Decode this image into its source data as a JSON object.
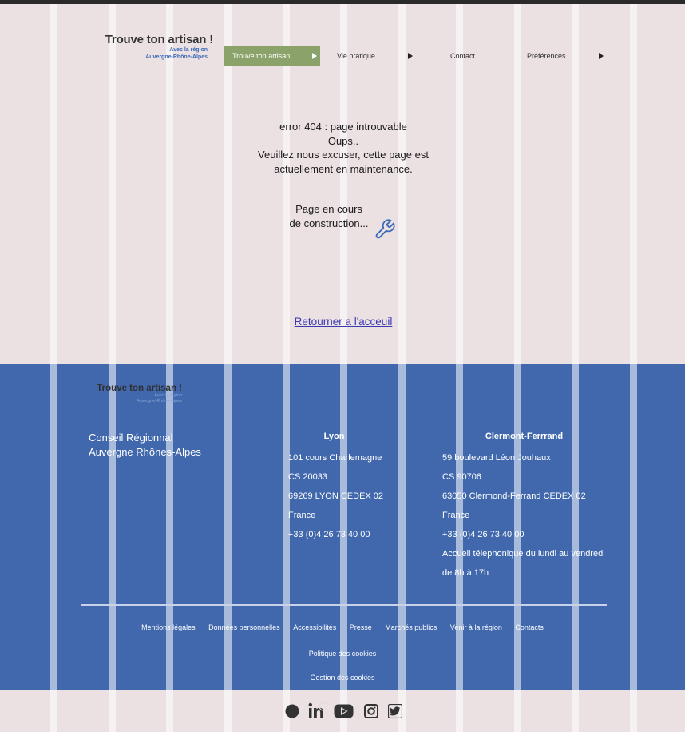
{
  "header": {
    "logo_title": "Trouve ton artisan !",
    "logo_sub1": "Avec la région",
    "logo_sub2": "Auvergne-Rhône-Alpes",
    "nav": [
      {
        "label": "Trouve ton artisan",
        "active": true
      },
      {
        "label": "Vie pratique"
      },
      {
        "label": "Contact"
      },
      {
        "label": "Préférences"
      }
    ]
  },
  "main": {
    "error_line1": "error 404 : page introuvable",
    "error_line2": "Oups..",
    "error_line3": "Veuillez nous excuser, cette page est actuellement en maintenance.",
    "construction": "Page en cours de construction...",
    "home_link": "Retourner a l'acceuil"
  },
  "footer": {
    "logo_title": "Trouve ton artisan !",
    "logo_sub1": "Avec la région",
    "logo_sub2": "Auvergne-Rhône-Alpes",
    "council_line1": "Conseil Régionnal",
    "council_line2": "Auvergne Rhônes-Alpes",
    "lyon": {
      "name": "Lyon",
      "lines": [
        "101 cours Charlemagne",
        "CS 20033",
        "69269 LYON CEDEX 02",
        "France",
        "+33 (0)4 26 73 40 00"
      ]
    },
    "clermont": {
      "name": "Clermont-Ferrrand",
      "lines": [
        "59 boulevard Léon Jouhaux",
        "CS 90706",
        "63050 Clermond-Ferrand CEDEX 02",
        "France",
        "+33 (0)4 26 73 40 00",
        "Accueil télephonique du lundi au vendredi",
        "de 8h à 17h"
      ]
    },
    "links": [
      "Mentions légales",
      "Données personnelles",
      "Accessibilités",
      "Presse",
      "Marchés publics",
      "Venir à la région",
      "Contacts"
    ],
    "cookies_policy": "Politique des cookies",
    "cookies_manage": "Gestion des cookies"
  },
  "social": {
    "icons": [
      "circle-icon",
      "linkedin-icon",
      "youtube-icon",
      "instagram-icon",
      "twitter-icon"
    ]
  },
  "colors": {
    "page_bg": "#ebe0e2",
    "footer_bg": "#4168ad",
    "nav_active": "#8ba36a",
    "link": "#3a3ab0",
    "accent_blue": "#3b6bb8"
  }
}
